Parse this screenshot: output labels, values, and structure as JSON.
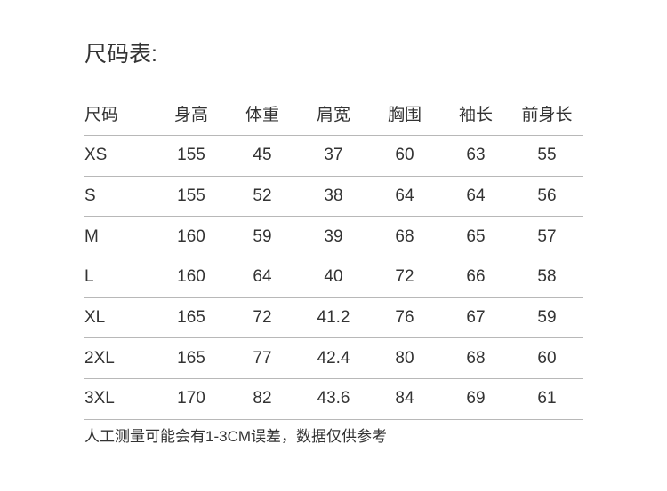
{
  "title": "尺码表:",
  "table": {
    "headers": [
      "尺码",
      "身高",
      "体重",
      "肩宽",
      "胸围",
      "袖长",
      "前身长"
    ],
    "rows": [
      [
        "XS",
        "155",
        "45",
        "37",
        "60",
        "63",
        "55"
      ],
      [
        "S",
        "155",
        "52",
        "38",
        "64",
        "64",
        "56"
      ],
      [
        "M",
        "160",
        "59",
        "39",
        "68",
        "65",
        "57"
      ],
      [
        "L",
        "160",
        "64",
        "40",
        "72",
        "66",
        "58"
      ],
      [
        "XL",
        "165",
        "72",
        "41.2",
        "76",
        "67",
        "59"
      ],
      [
        "2XL",
        "165",
        "77",
        "42.4",
        "80",
        "68",
        "60"
      ],
      [
        "3XL",
        "170",
        "82",
        "43.6",
        "84",
        "69",
        "61"
      ]
    ]
  },
  "note": "人工测量可能会有1-3CM误差，数据仅供参考"
}
